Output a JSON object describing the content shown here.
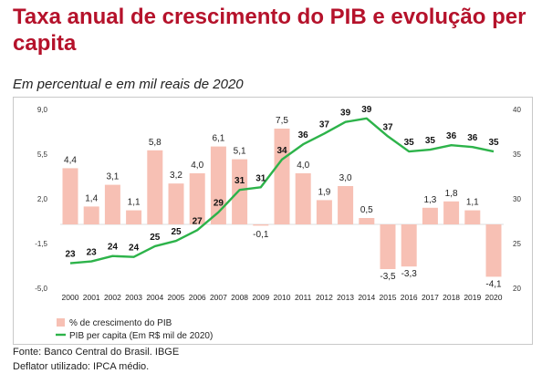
{
  "title": "Taxa anual de crescimento do PIB e evolução per capita",
  "subtitle": "Em percentual e em mil reais de 2020",
  "source": "Fonte: Banco Central do Brasil. IBGE",
  "deflator": "Deflator utilizado: IPCA médio.",
  "colors": {
    "bar": "#f7c0b4",
    "line": "#2db34a",
    "title": "#b5122b"
  },
  "chart_data": {
    "type": "bar",
    "categories": [
      "2000",
      "2001",
      "2002",
      "2003",
      "2004",
      "2005",
      "2006",
      "2007",
      "2008",
      "2009",
      "2010",
      "2011",
      "2012",
      "2013",
      "2014",
      "2015",
      "2016",
      "2017",
      "2018",
      "2019",
      "2020"
    ],
    "bar_labels": [
      "4,4",
      "1,4",
      "3,1",
      "1,1",
      "5,8",
      "3,2",
      "4,0",
      "6,1",
      "5,1",
      "-0,1",
      "7,5",
      "4,0",
      "1,9",
      "3,0",
      "0,5",
      "-3,5",
      "-3,3",
      "1,3",
      "1,8",
      "1,1",
      "-4,1"
    ],
    "line_labels": [
      "23",
      "23",
      "24",
      "24",
      "25",
      "25",
      "27",
      "29",
      "31",
      "31",
      "34",
      "36",
      "37",
      "39",
      "39",
      "37",
      "35",
      "35",
      "36",
      "36",
      "35"
    ],
    "y_left_ticks": [
      "9,0",
      "5,5",
      "2,0",
      "-1,5",
      "-5,0"
    ],
    "y_right_ticks": [
      "40",
      "35",
      "30",
      "25",
      "20"
    ],
    "series": [
      {
        "name": "% de crescimento do PIB",
        "axis": "left",
        "type": "bar",
        "values": [
          4.4,
          1.4,
          3.1,
          1.1,
          5.8,
          3.2,
          4.0,
          6.1,
          5.1,
          -0.1,
          7.5,
          4.0,
          1.9,
          3.0,
          0.5,
          -3.5,
          -3.3,
          1.3,
          1.8,
          1.1,
          -4.1
        ]
      },
      {
        "name": "PIB per capita (Em R$ mil de 2020)",
        "axis": "right",
        "type": "line",
        "values": [
          22.8,
          23.0,
          23.6,
          23.5,
          24.7,
          25.3,
          26.5,
          28.5,
          31.0,
          31.3,
          34.4,
          36.1,
          37.3,
          38.6,
          39.0,
          37.0,
          35.3,
          35.5,
          36.0,
          35.8,
          35.3
        ]
      }
    ],
    "ylim_left": [
      -5,
      9
    ],
    "ylim_right": [
      20,
      40
    ],
    "legend_position": "bottom-left",
    "grid": false
  }
}
